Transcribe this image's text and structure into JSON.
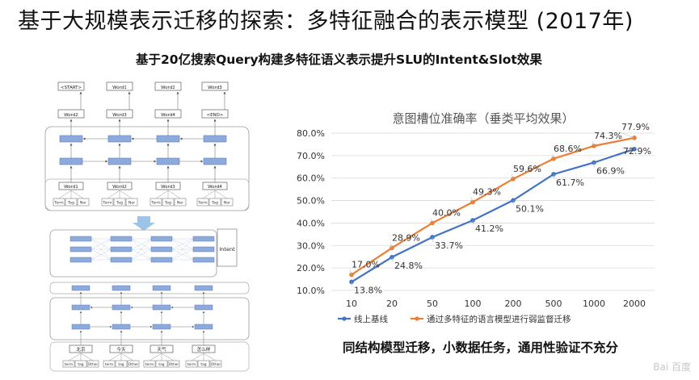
{
  "page": {
    "title": "基于大规模表示迁移的探索：多特征融合的表示模型 (2017年)",
    "subtitle": "基于20亿搜索Query构建多特征语义表示提升SLU的Intent&Slot效果",
    "conclusion": "同结构模型迁移，小数据任务，通用性验证不充分",
    "watermark": "Bai 百度"
  },
  "diagram_top": {
    "output_tokens": [
      "<START>",
      "Word1",
      "Word2",
      "Word3"
    ],
    "target_tokens": [
      "Word2",
      "Word3",
      "Word4",
      "<END>"
    ],
    "input_words": [
      "Word1",
      "Word2",
      "Word3",
      "Word4"
    ],
    "features": [
      "Term",
      "Tag",
      "Ner"
    ]
  },
  "diagram_bottom": {
    "intent_label": "Intent",
    "input_words": [
      "北京",
      "今天",
      "天气",
      "怎么样"
    ],
    "features": [
      "term",
      "tag",
      "Other"
    ]
  },
  "chart_data": {
    "type": "line",
    "title": "意图槽位准确率（垂类平均效果）",
    "categories": [
      "10",
      "20",
      "50",
      "100",
      "200",
      "500",
      "1000",
      "2000"
    ],
    "ylim": [
      10,
      80
    ],
    "yticks": [
      "10.0%",
      "20.0%",
      "30.0%",
      "40.0%",
      "50.0%",
      "60.0%",
      "70.0%",
      "80.0%"
    ],
    "grid": true,
    "legend_position": "bottom",
    "series": [
      {
        "name": "线上基线",
        "color": "#4472c4",
        "values": [
          13.8,
          24.8,
          33.7,
          41.2,
          50.1,
          61.7,
          66.9,
          72.9
        ],
        "labels": [
          "13.8%",
          "24.8%",
          "33.7%",
          "41.2%",
          "50.1%",
          "61.7%",
          "66.9%",
          "72.9%"
        ]
      },
      {
        "name": "通过多特征的语言模型进行弱监督迁移",
        "color": "#ed7d31",
        "values": [
          17.0,
          28.9,
          40.0,
          49.3,
          59.6,
          68.6,
          74.3,
          77.9
        ],
        "labels": [
          "17.0%",
          "28.9%",
          "40.0%",
          "49.3%",
          "59.6%",
          "68.6%",
          "74.3%",
          "77.9%"
        ]
      }
    ]
  }
}
